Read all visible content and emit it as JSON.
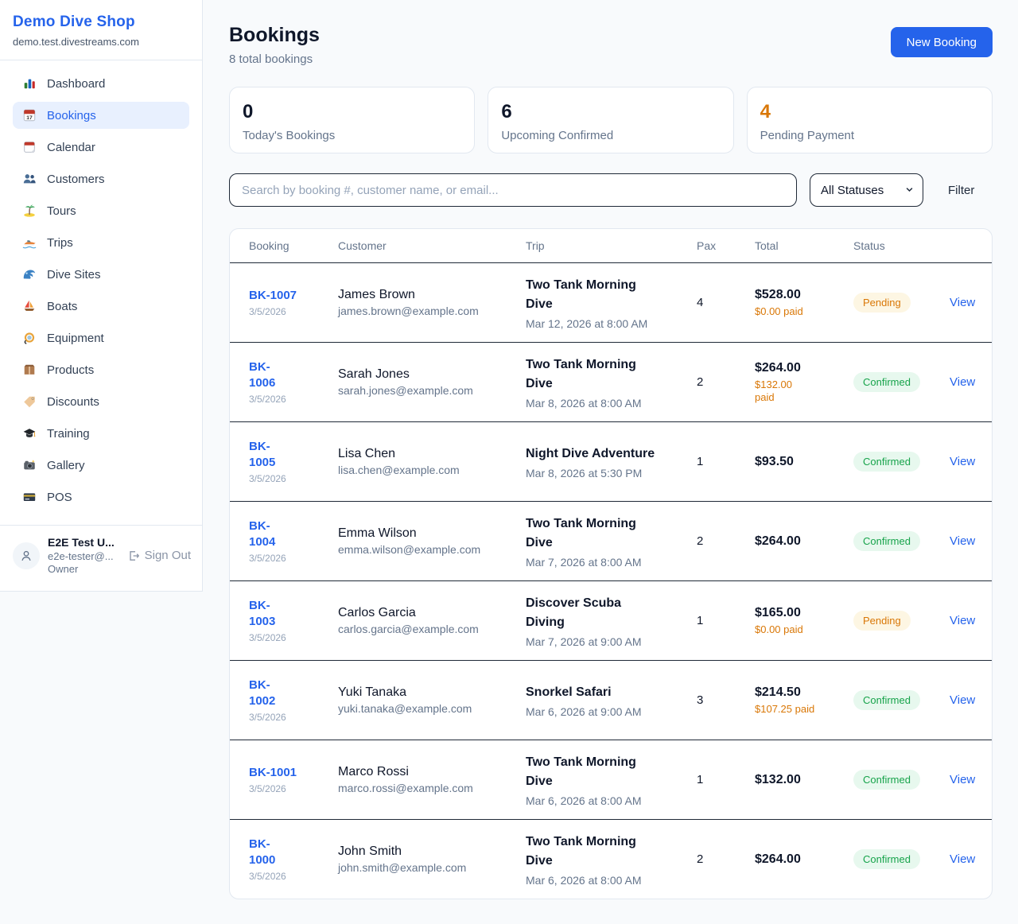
{
  "brand": {
    "name": "Demo Dive Shop",
    "domain": "demo.test.divestreams.com"
  },
  "sidebar": {
    "items": [
      {
        "label": "Dashboard",
        "icon": "bar-chart-icon",
        "active": false
      },
      {
        "label": "Bookings",
        "icon": "calendar-17-icon",
        "active": true
      },
      {
        "label": "Calendar",
        "icon": "calendar-icon",
        "active": false
      },
      {
        "label": "Customers",
        "icon": "people-icon",
        "active": false
      },
      {
        "label": "Tours",
        "icon": "island-icon",
        "active": false
      },
      {
        "label": "Trips",
        "icon": "speedboat-icon",
        "active": false
      },
      {
        "label": "Dive Sites",
        "icon": "wave-icon",
        "active": false
      },
      {
        "label": "Boats",
        "icon": "sailboat-icon",
        "active": false
      },
      {
        "label": "Equipment",
        "icon": "dive-mask-icon",
        "active": false
      },
      {
        "label": "Products",
        "icon": "package-icon",
        "active": false
      },
      {
        "label": "Discounts",
        "icon": "tag-icon",
        "active": false
      },
      {
        "label": "Training",
        "icon": "grad-cap-icon",
        "active": false
      },
      {
        "label": "Gallery",
        "icon": "camera-icon",
        "active": false
      },
      {
        "label": "POS",
        "icon": "credit-card-icon",
        "active": false
      }
    ]
  },
  "user": {
    "name": "E2E Test U...",
    "email": "e2e-tester@...",
    "role": "Owner",
    "sign_out_label": "Sign Out"
  },
  "header": {
    "title": "Bookings",
    "subtitle": "8 total bookings",
    "new_booking_label": "New Booking"
  },
  "stats": [
    {
      "value": "0",
      "label": "Today's Bookings",
      "color": "#0f172a"
    },
    {
      "value": "6",
      "label": "Upcoming Confirmed",
      "color": "#0f172a"
    },
    {
      "value": "4",
      "label": "Pending Payment",
      "color": "#d97706"
    }
  ],
  "controls": {
    "search_placeholder": "Search by booking #, customer name, or email...",
    "status_filter_value": "All Statuses",
    "filter_label": "Filter"
  },
  "table": {
    "columns": [
      "Booking",
      "Customer",
      "Trip",
      "Pax",
      "Total",
      "Status"
    ],
    "view_label": "View",
    "rows": [
      {
        "id": "BK-1007",
        "date": "3/5/2026",
        "customer_name": "James Brown",
        "customer_email": "james.brown@example.com",
        "trip_name": "Two Tank Morning\nDive",
        "trip_datetime": "Mar 12, 2026 at 8:00 AM",
        "pax": "4",
        "total": "$528.00",
        "paid": "$0.00 paid",
        "status": "Pending"
      },
      {
        "id": "BK-\n1006",
        "date": "3/5/2026",
        "customer_name": "Sarah Jones",
        "customer_email": "sarah.jones@example.com",
        "trip_name": "Two Tank Morning\nDive",
        "trip_datetime": "Mar 8, 2026 at 8:00 AM",
        "pax": "2",
        "total": "$264.00",
        "paid": "$132.00\npaid",
        "status": "Confirmed"
      },
      {
        "id": "BK-\n1005",
        "date": "3/5/2026",
        "customer_name": "Lisa Chen",
        "customer_email": "lisa.chen@example.com",
        "trip_name": "Night Dive Adventure",
        "trip_datetime": "Mar 8, 2026 at 5:30 PM",
        "pax": "1",
        "total": "$93.50",
        "paid": null,
        "status": "Confirmed"
      },
      {
        "id": "BK-\n1004",
        "date": "3/5/2026",
        "customer_name": "Emma Wilson",
        "customer_email": "emma.wilson@example.com",
        "trip_name": "Two Tank Morning\nDive",
        "trip_datetime": "Mar 7, 2026 at 8:00 AM",
        "pax": "2",
        "total": "$264.00",
        "paid": null,
        "status": "Confirmed"
      },
      {
        "id": "BK-\n1003",
        "date": "3/5/2026",
        "customer_name": "Carlos Garcia",
        "customer_email": "carlos.garcia@example.com",
        "trip_name": "Discover Scuba\nDiving",
        "trip_datetime": "Mar 7, 2026 at 9:00 AM",
        "pax": "1",
        "total": "$165.00",
        "paid": "$0.00 paid",
        "status": "Pending"
      },
      {
        "id": "BK-\n1002",
        "date": "3/5/2026",
        "customer_name": "Yuki Tanaka",
        "customer_email": "yuki.tanaka@example.com",
        "trip_name": "Snorkel Safari",
        "trip_datetime": "Mar 6, 2026 at 9:00 AM",
        "pax": "3",
        "total": "$214.50",
        "paid": "$107.25 paid",
        "status": "Confirmed"
      },
      {
        "id": "BK-1001",
        "date": "3/5/2026",
        "customer_name": "Marco Rossi",
        "customer_email": "marco.rossi@example.com",
        "trip_name": "Two Tank Morning\nDive",
        "trip_datetime": "Mar 6, 2026 at 8:00 AM",
        "pax": "1",
        "total": "$132.00",
        "paid": null,
        "status": "Confirmed"
      },
      {
        "id": "BK-\n1000",
        "date": "3/5/2026",
        "customer_name": "John Smith",
        "customer_email": "john.smith@example.com",
        "trip_name": "Two Tank Morning\nDive",
        "trip_datetime": "Mar 6, 2026 at 8:00 AM",
        "pax": "2",
        "total": "$264.00",
        "paid": null,
        "status": "Confirmed"
      }
    ]
  },
  "colors": {
    "accent_blue": "#2563eb",
    "pending_text": "#d97706",
    "pending_bg": "#fdf6e3",
    "confirmed_text": "#16a34a",
    "confirmed_bg": "#e7f8ee",
    "page_bg": "#f8fafc",
    "divider_dark": "#1f2937",
    "border_light": "#e2e8f0"
  }
}
